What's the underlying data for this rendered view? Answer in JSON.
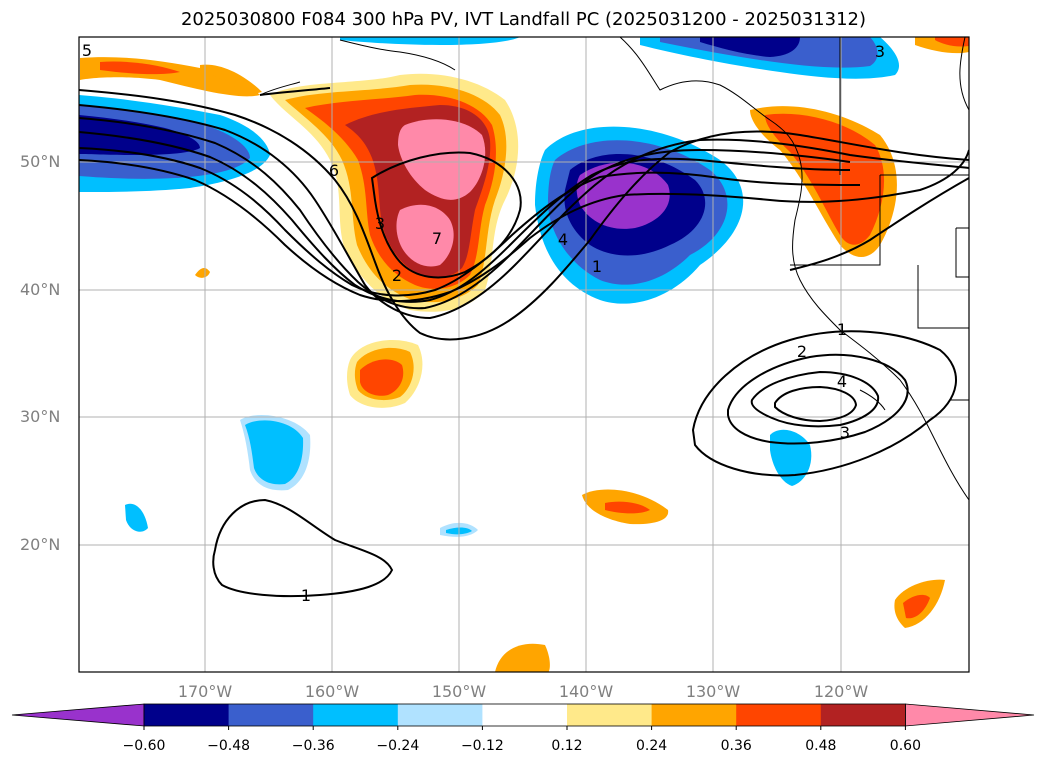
{
  "title": "2025030800 F084 300 hPa PV, IVT Landfall PC (2025031200 - 2025031312)",
  "lat_labels": [
    "50°N",
    "40°N",
    "30°N",
    "20°N"
  ],
  "lon_labels": [
    "170°W",
    "160°W",
    "150°W",
    "140°W",
    "130°W",
    "120°W"
  ],
  "colorbar": {
    "ticks": [
      "−0.60",
      "−0.48",
      "−0.36",
      "−0.24",
      "−0.12",
      "0.12",
      "0.24",
      "0.36",
      "0.48",
      "0.60"
    ],
    "colors": [
      "#9932cc",
      "#00008b",
      "#3a5fcd",
      "#00bfff",
      "#b0e2ff",
      "#ffffff",
      "#ffe98a",
      "#ffa500",
      "#ff4500",
      "#b22222",
      "#ff89a9"
    ]
  },
  "contour_labels": [
    "5",
    "6",
    "7",
    "3",
    "2",
    "4",
    "1",
    "1",
    "2",
    "4",
    "3",
    "1",
    "3"
  ]
}
